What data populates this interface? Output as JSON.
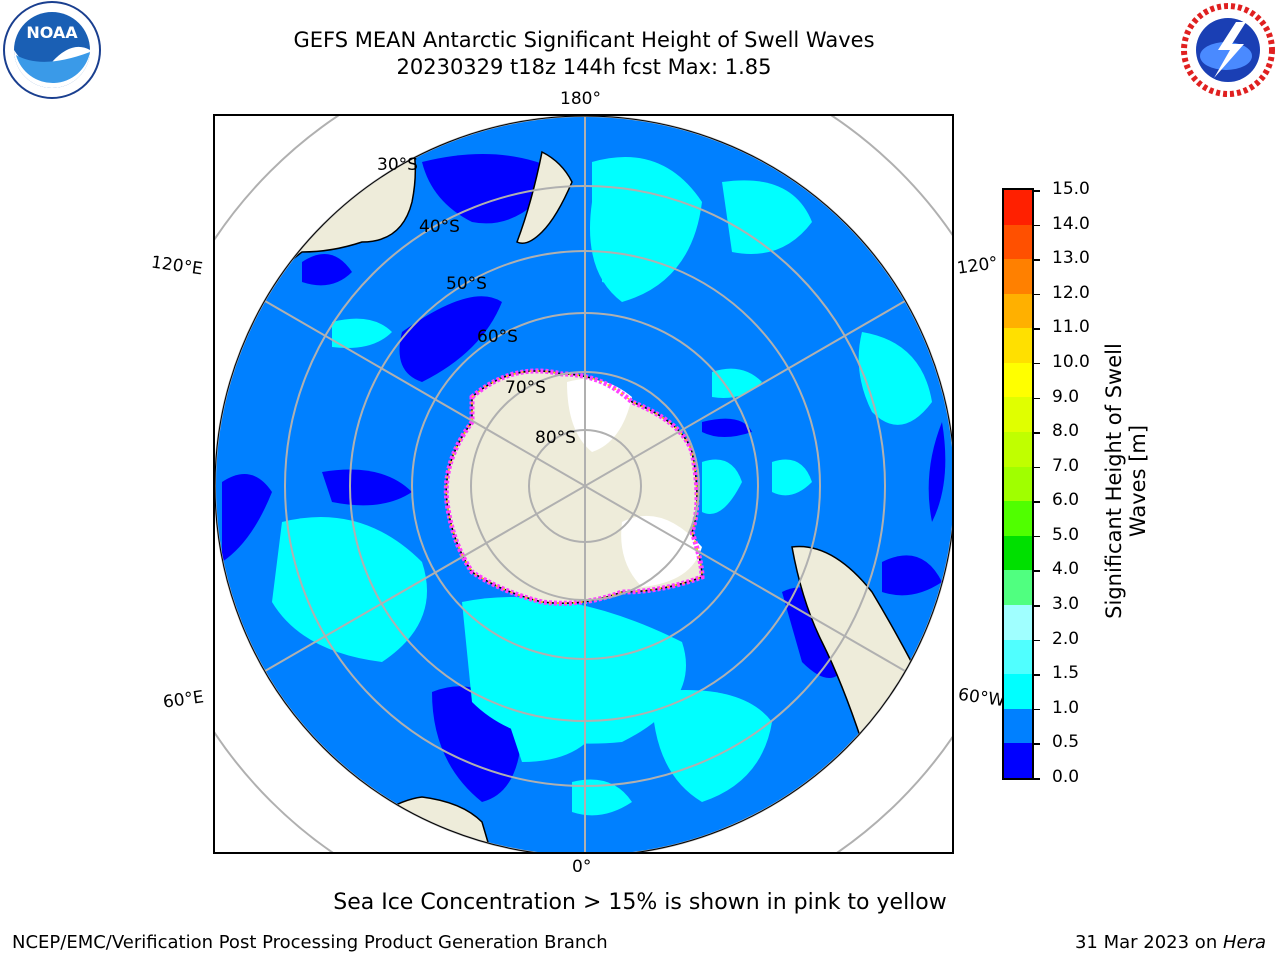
{
  "header": {
    "title_line1": "GEFS MEAN Antarctic Significant Height of Swell Waves",
    "title_line2": "20230329 t18z 144h fcst   Max: 1.85"
  },
  "logos": {
    "left": {
      "name": "noaa-logo",
      "text": "NOAA"
    },
    "right": {
      "name": "nws-logo"
    }
  },
  "map": {
    "projection": "south-polar-stereographic",
    "longitude_labels": {
      "top": "180°",
      "bottom": "0°",
      "left_upper": "120°E",
      "left_lower": "60°E",
      "right_upper": "120°",
      "right_lower": "60°W"
    },
    "latitude_labels": [
      "30°S",
      "40°S",
      "50°S",
      "60°S",
      "70°S",
      "80°S"
    ],
    "colors": {
      "land": "#eeecda",
      "ocean_0_0.5": "#0000ff",
      "ocean_0.5_1.0": "#0080ff",
      "ocean_1.0_1.5": "#00ffff",
      "ocean_1.5_2.0": "#00e8ff",
      "sea_ice": "#ff00ff",
      "grid": "#b0b0b0"
    }
  },
  "colorbar": {
    "title_line1": "Significant Height of Swell",
    "title_line2": "Waves [m]",
    "ticks": [
      "0.0",
      "0.5",
      "1.0",
      "1.5",
      "2.0",
      "3.0",
      "4.0",
      "5.0",
      "6.0",
      "7.0",
      "8.0",
      "9.0",
      "10.0",
      "11.0",
      "12.0",
      "13.0",
      "14.0",
      "15.0"
    ],
    "colors": [
      "#0000ff",
      "#0080ff",
      "#00ffff",
      "#50ffff",
      "#a0ffff",
      "#50ff80",
      "#00e000",
      "#50ff00",
      "#a0ff00",
      "#c0ff00",
      "#e0ff00",
      "#ffff00",
      "#ffe000",
      "#ffb000",
      "#ff8000",
      "#ff5000",
      "#ff2000",
      "#ff0000"
    ]
  },
  "notes": {
    "sea_ice": "Sea Ice Concentration > 15% is shown in pink to yellow"
  },
  "footer": {
    "left": "NCEP/EMC/Verification Post Processing Product Generation Branch",
    "right_date": "31 Mar 2023 on ",
    "right_host": "Hera"
  }
}
